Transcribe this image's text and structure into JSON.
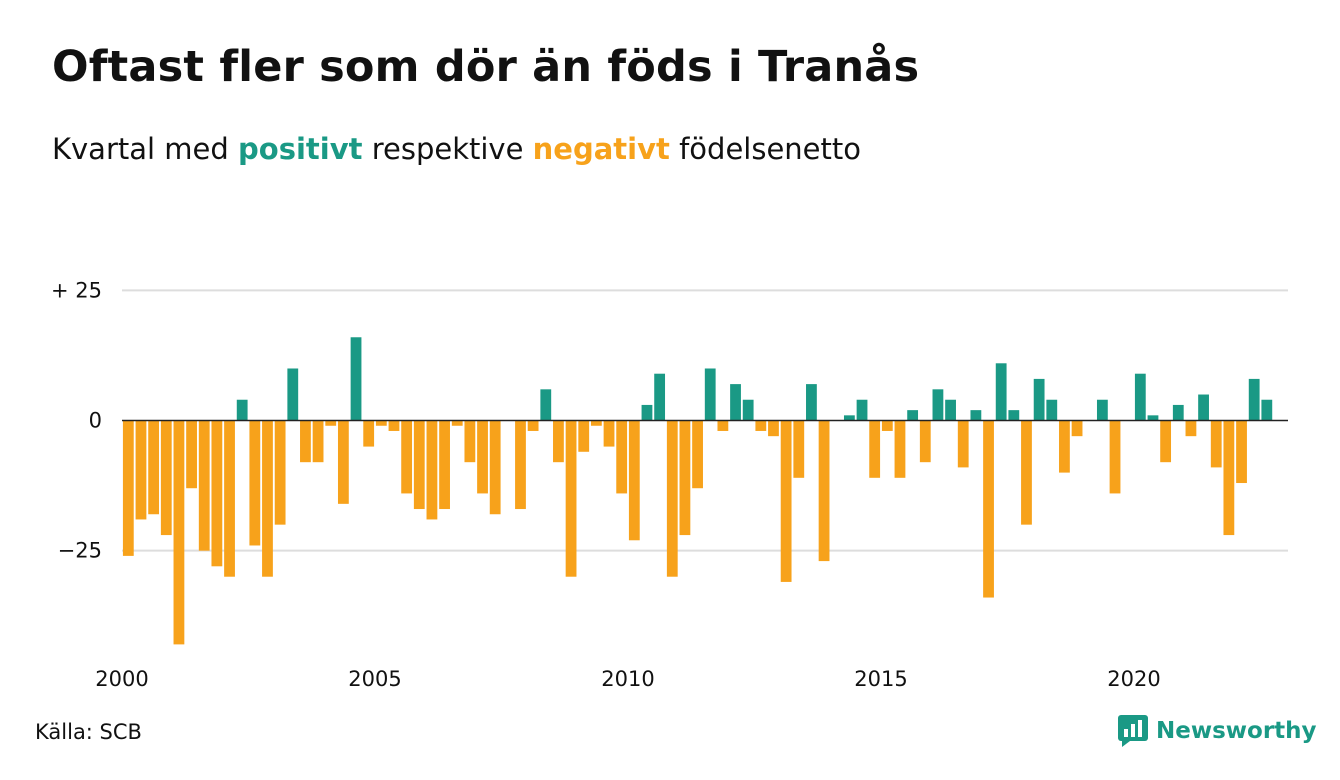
{
  "header": {
    "title": "Oftast fler som dör än föds i Tranås",
    "subtitle_before": "Kvartal med ",
    "subtitle_positive": "positivt",
    "subtitle_middle": " respektive ",
    "subtitle_negative": "negativt",
    "subtitle_after": " födelsenetto"
  },
  "footer": {
    "source": "Källa: SCB",
    "brand": "Newsworthy"
  },
  "colors": {
    "positive": "#1a9985",
    "negative": "#f7a21b",
    "grid": "#dddddd",
    "zero_line": "#222222"
  },
  "chart_data": {
    "type": "bar",
    "x_start": "2000 Q1",
    "quarters_per_year": 4,
    "ylim": [
      -46,
      27
    ],
    "y_ticks": [
      {
        "value": 25,
        "label": "+ 25"
      },
      {
        "value": 0,
        "label": "0"
      },
      {
        "value": -25,
        "label": "−25"
      }
    ],
    "x_ticks": [
      {
        "value": 2000,
        "label": "2000"
      },
      {
        "value": 2005,
        "label": "2005"
      },
      {
        "value": 2010,
        "label": "2010"
      },
      {
        "value": 2015,
        "label": "2015"
      },
      {
        "value": 2020,
        "label": "2020"
      }
    ],
    "values": [
      -26,
      -19,
      -18,
      -22,
      -43,
      -13,
      -25,
      -28,
      -30,
      4,
      -24,
      -30,
      -20,
      10,
      -8,
      -8,
      -1,
      -16,
      16,
      -5,
      -1,
      -2,
      -14,
      -17,
      -19,
      -17,
      -1,
      -8,
      -14,
      -18,
      0,
      -17,
      -2,
      6,
      -8,
      -30,
      -6,
      -1,
      -5,
      -14,
      -23,
      3,
      9,
      -30,
      -22,
      -13,
      10,
      -2,
      7,
      4,
      -2,
      -3,
      -31,
      -11,
      7,
      -27,
      0,
      1,
      4,
      -11,
      -2,
      -11,
      2,
      -8,
      6,
      4,
      -9,
      2,
      -34,
      11,
      2,
      -20,
      8,
      4,
      -10,
      -3,
      0,
      4,
      -14,
      0,
      9,
      1,
      -8,
      3,
      -3,
      5,
      -9,
      -22,
      -12,
      8,
      4
    ]
  }
}
